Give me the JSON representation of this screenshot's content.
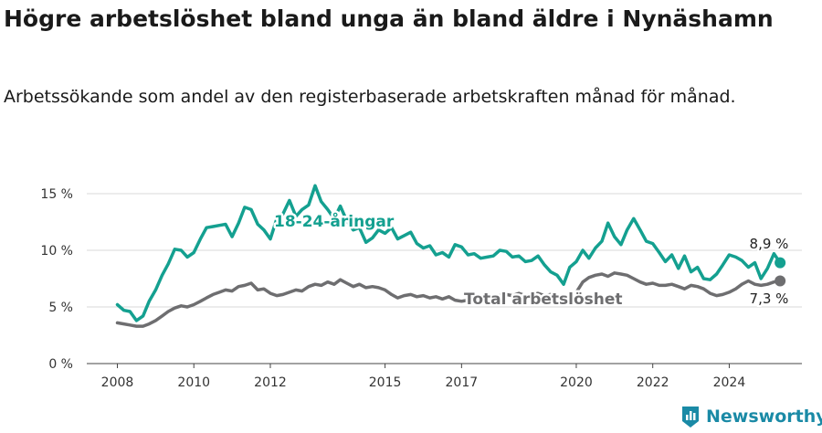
{
  "title": "Högre arbetslöshet bland unga än bland äldre i Nynäshamn",
  "subtitle": "Arbetssökande som andel av den registerbaserade arbetskraften månad för månad.",
  "brand": "Newsworthy",
  "colors": {
    "youth": "#14a090",
    "total": "#6e6e70",
    "grid": "#d9d9d9",
    "text": "#333333",
    "brand": "#1a8aa6"
  },
  "chart_data": {
    "type": "line",
    "x_ticks": [
      "2008",
      "2010",
      "2012",
      "2015",
      "2017",
      "2020",
      "2022",
      "2024"
    ],
    "y_ticks": [
      "0 %",
      "5 %",
      "10 %",
      "15 %"
    ],
    "ylim": [
      0,
      15
    ],
    "xlim": [
      2007.2,
      2025.9
    ],
    "grid": true,
    "series": [
      {
        "name": "18-24-åringar",
        "end_label": "8,9 %",
        "points": [
          [
            2008.0,
            5.2
          ],
          [
            2008.17,
            4.7
          ],
          [
            2008.33,
            4.6
          ],
          [
            2008.5,
            3.8
          ],
          [
            2008.67,
            4.2
          ],
          [
            2008.83,
            5.5
          ],
          [
            2009.0,
            6.5
          ],
          [
            2009.17,
            7.8
          ],
          [
            2009.33,
            8.8
          ],
          [
            2009.5,
            10.1
          ],
          [
            2009.67,
            10.0
          ],
          [
            2009.83,
            9.4
          ],
          [
            2010.0,
            9.8
          ],
          [
            2010.17,
            11.0
          ],
          [
            2010.33,
            12.0
          ],
          [
            2010.5,
            12.1
          ],
          [
            2010.67,
            12.2
          ],
          [
            2010.83,
            12.3
          ],
          [
            2011.0,
            11.2
          ],
          [
            2011.17,
            12.4
          ],
          [
            2011.33,
            13.8
          ],
          [
            2011.5,
            13.6
          ],
          [
            2011.67,
            12.3
          ],
          [
            2011.83,
            11.8
          ],
          [
            2012.0,
            11.0
          ],
          [
            2012.17,
            12.8
          ],
          [
            2012.33,
            13.2
          ],
          [
            2012.5,
            14.4
          ],
          [
            2012.67,
            13.0
          ],
          [
            2012.83,
            13.6
          ],
          [
            2013.0,
            14.0
          ],
          [
            2013.17,
            15.7
          ],
          [
            2013.33,
            14.3
          ],
          [
            2013.5,
            13.6
          ],
          [
            2013.67,
            12.8
          ],
          [
            2013.83,
            13.9
          ],
          [
            2014.0,
            12.6
          ],
          [
            2014.17,
            11.8
          ],
          [
            2014.33,
            12.0
          ],
          [
            2014.5,
            10.7
          ],
          [
            2014.67,
            11.1
          ],
          [
            2014.83,
            11.8
          ],
          [
            2015.0,
            11.5
          ],
          [
            2015.17,
            12.0
          ],
          [
            2015.33,
            11.0
          ],
          [
            2015.5,
            11.3
          ],
          [
            2015.67,
            11.6
          ],
          [
            2015.83,
            10.6
          ],
          [
            2016.0,
            10.2
          ],
          [
            2016.17,
            10.4
          ],
          [
            2016.33,
            9.6
          ],
          [
            2016.5,
            9.8
          ],
          [
            2016.67,
            9.4
          ],
          [
            2016.83,
            10.5
          ],
          [
            2017.0,
            10.3
          ],
          [
            2017.17,
            9.6
          ],
          [
            2017.33,
            9.7
          ],
          [
            2017.5,
            9.3
          ],
          [
            2017.67,
            9.4
          ],
          [
            2017.83,
            9.5
          ],
          [
            2018.0,
            10.0
          ],
          [
            2018.17,
            9.9
          ],
          [
            2018.33,
            9.4
          ],
          [
            2018.5,
            9.5
          ],
          [
            2018.67,
            9.0
          ],
          [
            2018.83,
            9.1
          ],
          [
            2019.0,
            9.5
          ],
          [
            2019.17,
            8.7
          ],
          [
            2019.33,
            8.1
          ],
          [
            2019.5,
            7.8
          ],
          [
            2019.67,
            7.0
          ],
          [
            2019.83,
            8.5
          ],
          [
            2020.0,
            9.0
          ],
          [
            2020.17,
            10.0
          ],
          [
            2020.33,
            9.3
          ],
          [
            2020.5,
            10.2
          ],
          [
            2020.67,
            10.8
          ],
          [
            2020.83,
            12.4
          ],
          [
            2021.0,
            11.2
          ],
          [
            2021.17,
            10.5
          ],
          [
            2021.33,
            11.8
          ],
          [
            2021.5,
            12.8
          ],
          [
            2021.67,
            11.8
          ],
          [
            2021.83,
            10.8
          ],
          [
            2022.0,
            10.6
          ],
          [
            2022.17,
            9.8
          ],
          [
            2022.33,
            9.0
          ],
          [
            2022.5,
            9.6
          ],
          [
            2022.67,
            8.4
          ],
          [
            2022.83,
            9.5
          ],
          [
            2023.0,
            8.1
          ],
          [
            2023.17,
            8.5
          ],
          [
            2023.33,
            7.5
          ],
          [
            2023.5,
            7.4
          ],
          [
            2023.67,
            7.9
          ],
          [
            2023.83,
            8.7
          ],
          [
            2024.0,
            9.6
          ],
          [
            2024.17,
            9.4
          ],
          [
            2024.33,
            9.1
          ],
          [
            2024.5,
            8.5
          ],
          [
            2024.67,
            8.9
          ],
          [
            2024.83,
            7.5
          ],
          [
            2025.0,
            8.4
          ],
          [
            2025.17,
            9.7
          ],
          [
            2025.33,
            8.9
          ]
        ]
      },
      {
        "name": "Total arbetslöshet",
        "end_label": "7,3 %",
        "points": [
          [
            2008.0,
            3.6
          ],
          [
            2008.17,
            3.5
          ],
          [
            2008.33,
            3.4
          ],
          [
            2008.5,
            3.3
          ],
          [
            2008.67,
            3.3
          ],
          [
            2008.83,
            3.5
          ],
          [
            2009.0,
            3.8
          ],
          [
            2009.17,
            4.2
          ],
          [
            2009.33,
            4.6
          ],
          [
            2009.5,
            4.9
          ],
          [
            2009.67,
            5.1
          ],
          [
            2009.83,
            5.0
          ],
          [
            2010.0,
            5.2
          ],
          [
            2010.17,
            5.5
          ],
          [
            2010.33,
            5.8
          ],
          [
            2010.5,
            6.1
          ],
          [
            2010.67,
            6.3
          ],
          [
            2010.83,
            6.5
          ],
          [
            2011.0,
            6.4
          ],
          [
            2011.17,
            6.8
          ],
          [
            2011.33,
            6.9
          ],
          [
            2011.5,
            7.1
          ],
          [
            2011.67,
            6.5
          ],
          [
            2011.83,
            6.6
          ],
          [
            2012.0,
            6.2
          ],
          [
            2012.17,
            6.0
          ],
          [
            2012.33,
            6.1
          ],
          [
            2012.5,
            6.3
          ],
          [
            2012.67,
            6.5
          ],
          [
            2012.83,
            6.4
          ],
          [
            2013.0,
            6.8
          ],
          [
            2013.17,
            7.0
          ],
          [
            2013.33,
            6.9
          ],
          [
            2013.5,
            7.2
          ],
          [
            2013.67,
            7.0
          ],
          [
            2013.83,
            7.4
          ],
          [
            2014.0,
            7.1
          ],
          [
            2014.17,
            6.8
          ],
          [
            2014.33,
            7.0
          ],
          [
            2014.5,
            6.7
          ],
          [
            2014.67,
            6.8
          ],
          [
            2014.83,
            6.7
          ],
          [
            2015.0,
            6.5
          ],
          [
            2015.17,
            6.1
          ],
          [
            2015.33,
            5.8
          ],
          [
            2015.5,
            6.0
          ],
          [
            2015.67,
            6.1
          ],
          [
            2015.83,
            5.9
          ],
          [
            2016.0,
            6.0
          ],
          [
            2016.17,
            5.8
          ],
          [
            2016.33,
            5.9
          ],
          [
            2016.5,
            5.7
          ],
          [
            2016.67,
            5.9
          ],
          [
            2016.83,
            5.6
          ],
          [
            2017.0,
            5.5
          ],
          [
            2017.17,
            5.6
          ],
          [
            2017.33,
            5.7
          ],
          [
            2017.5,
            5.7
          ],
          [
            2017.67,
            5.8
          ],
          [
            2017.83,
            6.0
          ],
          [
            2018.0,
            6.0
          ],
          [
            2018.17,
            6.1
          ],
          [
            2018.33,
            6.0
          ],
          [
            2018.5,
            6.2
          ],
          [
            2018.67,
            6.0
          ],
          [
            2018.83,
            6.1
          ],
          [
            2019.0,
            6.2
          ],
          [
            2019.17,
            6.0
          ],
          [
            2019.33,
            6.1
          ],
          [
            2019.5,
            5.9
          ],
          [
            2019.67,
            5.7
          ],
          [
            2019.83,
            6.0
          ],
          [
            2020.0,
            6.3
          ],
          [
            2020.17,
            7.2
          ],
          [
            2020.33,
            7.6
          ],
          [
            2020.5,
            7.8
          ],
          [
            2020.67,
            7.9
          ],
          [
            2020.83,
            7.7
          ],
          [
            2021.0,
            8.0
          ],
          [
            2021.17,
            7.9
          ],
          [
            2021.33,
            7.8
          ],
          [
            2021.5,
            7.5
          ],
          [
            2021.67,
            7.2
          ],
          [
            2021.83,
            7.0
          ],
          [
            2022.0,
            7.1
          ],
          [
            2022.17,
            6.9
          ],
          [
            2022.33,
            6.9
          ],
          [
            2022.5,
            7.0
          ],
          [
            2022.67,
            6.8
          ],
          [
            2022.83,
            6.6
          ],
          [
            2023.0,
            6.9
          ],
          [
            2023.17,
            6.8
          ],
          [
            2023.33,
            6.6
          ],
          [
            2023.5,
            6.2
          ],
          [
            2023.67,
            6.0
          ],
          [
            2023.83,
            6.1
          ],
          [
            2024.0,
            6.3
          ],
          [
            2024.17,
            6.6
          ],
          [
            2024.33,
            7.0
          ],
          [
            2024.5,
            7.3
          ],
          [
            2024.67,
            7.0
          ],
          [
            2024.83,
            6.9
          ],
          [
            2025.0,
            7.0
          ],
          [
            2025.17,
            7.2
          ],
          [
            2025.33,
            7.3
          ]
        ]
      }
    ]
  }
}
